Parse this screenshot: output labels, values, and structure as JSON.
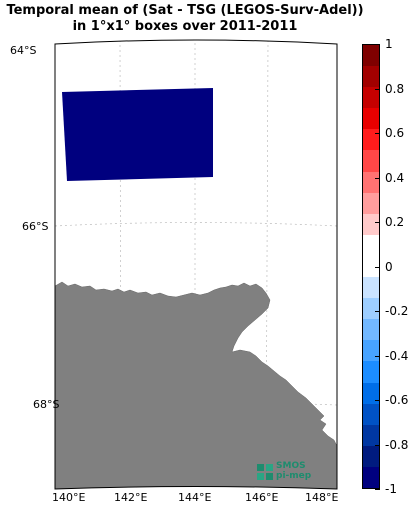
{
  "title": {
    "line1": "Temporal mean of (Sat - TSG (LEGOS-Surv-Adel))",
    "line2": "in 1°x1° boxes over 2011-2011"
  },
  "map": {
    "land_color": "#808080",
    "box_color": "#00007f",
    "lat_labels": [
      "64°S",
      "66°S",
      "68°S"
    ],
    "lon_labels": [
      "140°E",
      "142°E",
      "144°E",
      "146°E",
      "148°E"
    ]
  },
  "colorbar": {
    "ticks": [
      "1",
      "0.8",
      "0.6",
      "0.4",
      "0.2",
      "0",
      "-0.2",
      "-0.4",
      "-0.6",
      "-0.8",
      "-1"
    ],
    "colors": [
      "#7f0000",
      "#a20000",
      "#c50000",
      "#e80000",
      "#ff1c1c",
      "#ff4747",
      "#ff7272",
      "#ff9d9d",
      "#ffcaca",
      "#ffffff",
      "#ffffff",
      "#cae3ff",
      "#9dceff",
      "#72b8ff",
      "#47a3ff",
      "#1c8dff",
      "#006ee8",
      "#0052c5",
      "#0037a2",
      "#001b7f",
      "#00007f"
    ]
  },
  "logo": {
    "line1": "SMOS",
    "line2": "pi-mep"
  }
}
